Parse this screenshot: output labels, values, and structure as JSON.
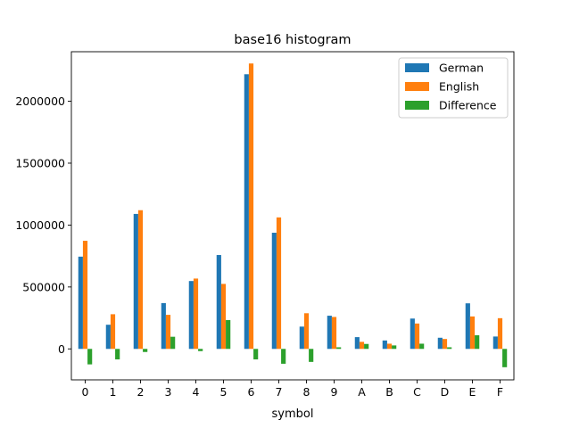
{
  "chart_data": {
    "type": "bar",
    "title": "base16 histogram",
    "xlabel": "symbol",
    "ylabel": "",
    "ylim": [
      -250000,
      2400000
    ],
    "yticks": [
      0,
      500000,
      1000000,
      1500000,
      2000000
    ],
    "ytick_labels": [
      "0",
      "500000",
      "1000000",
      "1500000",
      "2000000"
    ],
    "grid": false,
    "legend_position": "top-right",
    "categories": [
      "0",
      "1",
      "2",
      "3",
      "4",
      "5",
      "6",
      "7",
      "8",
      "9",
      "A",
      "B",
      "C",
      "D",
      "E",
      "F"
    ],
    "series": [
      {
        "name": "German",
        "color": "#1f77b4",
        "values": [
          745000,
          195000,
          1090000,
          370000,
          548000,
          758000,
          2218000,
          938000,
          180000,
          268000,
          95000,
          68000,
          245000,
          90000,
          368000,
          100000
        ]
      },
      {
        "name": "English",
        "color": "#ff7f0e",
        "values": [
          873000,
          280000,
          1120000,
          275000,
          568000,
          525000,
          2305000,
          1062000,
          288000,
          258000,
          57000,
          42000,
          205000,
          80000,
          262000,
          248000
        ]
      },
      {
        "name": "Difference",
        "color": "#2ca02c",
        "values": [
          -125000,
          -85000,
          -25000,
          98000,
          -18000,
          233000,
          -85000,
          -120000,
          -105000,
          13000,
          40000,
          28000,
          42000,
          13000,
          110000,
          -148000
        ]
      }
    ]
  }
}
